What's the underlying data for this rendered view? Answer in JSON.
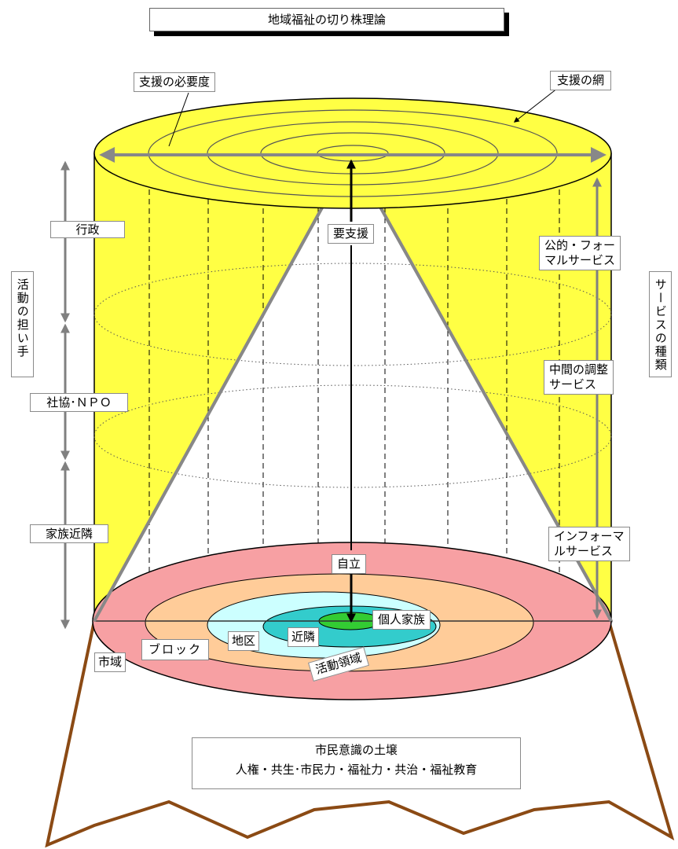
{
  "title": "地域福祉の切り株理論",
  "top_labels": {
    "necessity": "支援の必要度",
    "network": "支援の網"
  },
  "center_labels": {
    "needs_support": "要支援",
    "independence": "自立"
  },
  "actors_label": "活動の担い手",
  "actors": {
    "administration": "行政",
    "social_council": "社協･ＮＰＯ",
    "family": "家族近隣"
  },
  "services_label": "サービスの種類",
  "services": {
    "formal": [
      "公的・フォー",
      "マルサービス"
    ],
    "intermediate": [
      "中間の調整",
      "サービス"
    ],
    "informal": [
      "インフォーマ",
      "ルサービス"
    ]
  },
  "areas": {
    "city": "市域",
    "block": "ブロック",
    "district": "地区",
    "neighborhood": "近隣",
    "individual": "個人家族",
    "activity_area": "活動領域"
  },
  "soil": {
    "title": "市民意識の土壌",
    "items": "人権・共生･市民力・福祉力・共治・福祉教育"
  },
  "colors": {
    "cylinder": "#ffff44",
    "disk_city": "#f7a0a3",
    "disk_block": "#ffcc99",
    "disk_district": "#ccffff",
    "disk_neighborhood": "#33cccc",
    "disk_individual": "#33cc33",
    "roots": "#8b4a14"
  }
}
